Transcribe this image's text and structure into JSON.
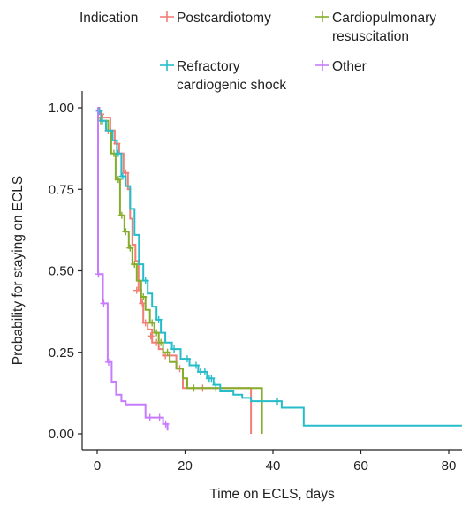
{
  "chart_data": {
    "type": "line",
    "subtype": "kaplan-meier step",
    "title": "",
    "xlabel": "Time on ECLS, days",
    "ylabel": "Probability for staying on ECLS",
    "xlim": [
      -3,
      83
    ],
    "ylim": [
      -0.04,
      1.04
    ],
    "x_ticks": [
      0,
      20,
      40,
      60,
      80
    ],
    "x_tick_labels": [
      "0",
      "20",
      "40",
      "60",
      "80"
    ],
    "y_ticks": [
      0,
      0.25,
      0.5,
      0.75,
      1.0
    ],
    "y_tick_labels": [
      "0.00",
      "0.25",
      "0.50",
      "0.75",
      "1.00"
    ],
    "grid": false,
    "legend": {
      "title": "Indication",
      "placement": "top",
      "entries": [
        "Postcardiotomy",
        "Cardiopulmonary resuscitation",
        "Refractory cardiogenic shock",
        "Other"
      ]
    },
    "series": [
      {
        "name": "Postcardiotomy",
        "color": "#f07f76",
        "steps": [
          [
            0,
            1.0
          ],
          [
            0.5,
            0.98
          ],
          [
            1.2,
            0.97
          ],
          [
            3,
            0.93
          ],
          [
            4,
            0.89
          ],
          [
            5,
            0.86
          ],
          [
            6,
            0.8
          ],
          [
            7,
            0.75
          ],
          [
            7.5,
            0.66
          ],
          [
            8,
            0.58
          ],
          [
            8.7,
            0.53
          ],
          [
            9.4,
            0.44
          ],
          [
            10,
            0.4
          ],
          [
            10.5,
            0.34
          ],
          [
            11.5,
            0.32
          ],
          [
            12.5,
            0.28
          ],
          [
            14,
            0.26
          ],
          [
            15,
            0.24
          ],
          [
            18,
            0.2
          ],
          [
            19.5,
            0.14
          ],
          [
            35,
            0.14
          ],
          [
            35,
            0
          ]
        ],
        "censored": [
          [
            0.8,
            0.98
          ],
          [
            2.5,
            0.93
          ],
          [
            4.5,
            0.89
          ],
          [
            6.5,
            0.8
          ],
          [
            9,
            0.44
          ],
          [
            10.3,
            0.4
          ],
          [
            11,
            0.34
          ],
          [
            12.2,
            0.3
          ],
          [
            13.5,
            0.28
          ],
          [
            15.5,
            0.24
          ],
          [
            16.5,
            0.24
          ],
          [
            18.8,
            0.2
          ],
          [
            24,
            0.14
          ],
          [
            28,
            0.14
          ]
        ]
      },
      {
        "name": "Cardiopulmonary resuscitation",
        "color": "#85ad2b",
        "steps": [
          [
            0,
            0.97
          ],
          [
            0.7,
            0.96
          ],
          [
            2.5,
            0.93
          ],
          [
            3.2,
            0.86
          ],
          [
            4.2,
            0.78
          ],
          [
            5.2,
            0.67
          ],
          [
            6.2,
            0.62
          ],
          [
            7.2,
            0.57
          ],
          [
            8,
            0.52
          ],
          [
            9,
            0.47
          ],
          [
            10,
            0.42
          ],
          [
            11,
            0.38
          ],
          [
            12,
            0.34
          ],
          [
            13,
            0.31
          ],
          [
            14,
            0.28
          ],
          [
            15,
            0.25
          ],
          [
            16.5,
            0.22
          ],
          [
            18,
            0.2
          ],
          [
            19.5,
            0.17
          ],
          [
            20.5,
            0.14
          ],
          [
            37.5,
            0.14
          ],
          [
            37.5,
            0
          ]
        ],
        "censored": [
          [
            0.8,
            0.96
          ],
          [
            3.8,
            0.86
          ],
          [
            4.8,
            0.78
          ],
          [
            5.6,
            0.67
          ],
          [
            6.5,
            0.62
          ],
          [
            7.5,
            0.57
          ],
          [
            8.5,
            0.52
          ],
          [
            10.5,
            0.42
          ],
          [
            12.5,
            0.34
          ],
          [
            13.5,
            0.31
          ],
          [
            14.5,
            0.28
          ],
          [
            16,
            0.25
          ],
          [
            22,
            0.14
          ],
          [
            27,
            0.14
          ]
        ]
      },
      {
        "name": "Refractory cardiogenic shock",
        "color": "#26bcc9",
        "steps": [
          [
            0,
            0.99
          ],
          [
            1,
            0.96
          ],
          [
            2,
            0.93
          ],
          [
            3.5,
            0.9
          ],
          [
            4.5,
            0.86
          ],
          [
            5.5,
            0.79
          ],
          [
            6.5,
            0.76
          ],
          [
            7.5,
            0.69
          ],
          [
            8.5,
            0.61
          ],
          [
            9.5,
            0.52
          ],
          [
            10.5,
            0.47
          ],
          [
            11.5,
            0.43
          ],
          [
            12.5,
            0.39
          ],
          [
            13.5,
            0.35
          ],
          [
            14.5,
            0.31
          ],
          [
            15.5,
            0.28
          ],
          [
            17,
            0.26
          ],
          [
            19,
            0.23
          ],
          [
            21,
            0.21
          ],
          [
            23,
            0.19
          ],
          [
            25,
            0.17
          ],
          [
            26.5,
            0.15
          ],
          [
            28,
            0.13
          ],
          [
            31,
            0.12
          ],
          [
            33,
            0.11
          ],
          [
            35,
            0.1
          ],
          [
            42,
            0.08
          ],
          [
            47,
            0.025
          ],
          [
            83,
            0.025
          ]
        ],
        "censored": [
          [
            0.5,
            0.99
          ],
          [
            1.2,
            0.96
          ],
          [
            4.8,
            0.86
          ],
          [
            5.8,
            0.79
          ],
          [
            11,
            0.47
          ],
          [
            14,
            0.35
          ],
          [
            17.5,
            0.26
          ],
          [
            20.5,
            0.23
          ],
          [
            22.5,
            0.21
          ],
          [
            23.5,
            0.19
          ],
          [
            24.5,
            0.19
          ],
          [
            25.5,
            0.17
          ],
          [
            26,
            0.17
          ],
          [
            27,
            0.15
          ],
          [
            41,
            0.1
          ]
        ]
      },
      {
        "name": "Other",
        "color": "#c77cff",
        "steps": [
          [
            0,
            1.0
          ],
          [
            0.2,
            0.49
          ],
          [
            1.3,
            0.4
          ],
          [
            2.4,
            0.22
          ],
          [
            3.3,
            0.16
          ],
          [
            4.3,
            0.12
          ],
          [
            5.5,
            0.1
          ],
          [
            6.5,
            0.09
          ],
          [
            11,
            0.05
          ],
          [
            15,
            0.03
          ],
          [
            16,
            0.01
          ]
        ],
        "censored": [
          [
            0.3,
            0.49
          ],
          [
            1.5,
            0.4
          ],
          [
            2.6,
            0.22
          ],
          [
            12,
            0.05
          ],
          [
            14.2,
            0.05
          ],
          [
            15.6,
            0.03
          ]
        ]
      }
    ]
  }
}
